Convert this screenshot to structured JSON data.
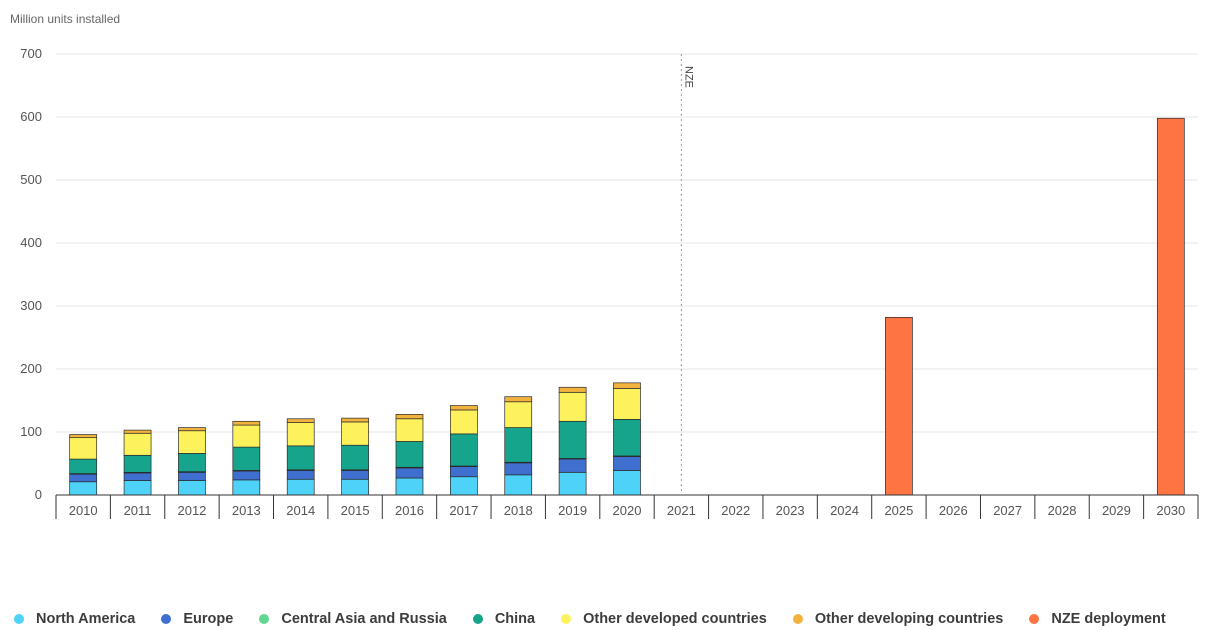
{
  "chart_data": {
    "type": "bar",
    "stacked": true,
    "ylabel": "Million units installed",
    "ylim": [
      0,
      700
    ],
    "yticks": [
      0,
      100,
      200,
      300,
      400,
      500,
      600,
      700
    ],
    "grid": true,
    "legend_position": "bottom",
    "categories": [
      "2010",
      "2011",
      "2012",
      "2013",
      "2014",
      "2015",
      "2016",
      "2017",
      "2018",
      "2019",
      "2020",
      "2021",
      "2022",
      "2023",
      "2024",
      "2025",
      "2026",
      "2027",
      "2028",
      "2029",
      "2030"
    ],
    "annotations": [
      {
        "label": "NZE",
        "x": "2021"
      }
    ],
    "series": [
      {
        "name": "North America",
        "color": "#4fd2f7",
        "values": [
          21,
          23,
          23,
          24,
          25,
          25,
          27,
          29,
          32,
          36,
          39,
          0,
          0,
          0,
          0,
          0,
          0,
          0,
          0,
          0,
          0
        ]
      },
      {
        "name": "Europe",
        "color": "#3f6fcf",
        "values": [
          12,
          12,
          13,
          14,
          14,
          14,
          16,
          16,
          19,
          21,
          22,
          0,
          0,
          0,
          0,
          0,
          0,
          0,
          0,
          0,
          0
        ]
      },
      {
        "name": "Central Asia and Russia",
        "color": "#63d68f",
        "values": [
          1,
          1,
          1,
          1,
          1,
          1,
          1,
          1,
          1,
          1,
          1,
          0,
          0,
          0,
          0,
          0,
          0,
          0,
          0,
          0,
          0
        ]
      },
      {
        "name": "China",
        "color": "#16a58c",
        "values": [
          23,
          27,
          29,
          37,
          38,
          39,
          41,
          51,
          55,
          59,
          58,
          0,
          0,
          0,
          0,
          0,
          0,
          0,
          0,
          0,
          0
        ]
      },
      {
        "name": "Other developed countries",
        "color": "#fdf25c",
        "values": [
          34,
          35,
          36,
          35,
          37,
          37,
          36,
          38,
          41,
          46,
          49,
          0,
          0,
          0,
          0,
          0,
          0,
          0,
          0,
          0,
          0
        ]
      },
      {
        "name": "Other developing countries",
        "color": "#f2b23e",
        "values": [
          5,
          5,
          5,
          6,
          6,
          6,
          7,
          7,
          8,
          8,
          9,
          0,
          0,
          0,
          0,
          0,
          0,
          0,
          0,
          0,
          0
        ]
      },
      {
        "name": "NZE deployment",
        "color": "#fe7443",
        "values": [
          0,
          0,
          0,
          0,
          0,
          0,
          0,
          0,
          0,
          0,
          0,
          0,
          0,
          0,
          0,
          282,
          0,
          0,
          0,
          0,
          598
        ]
      }
    ]
  }
}
